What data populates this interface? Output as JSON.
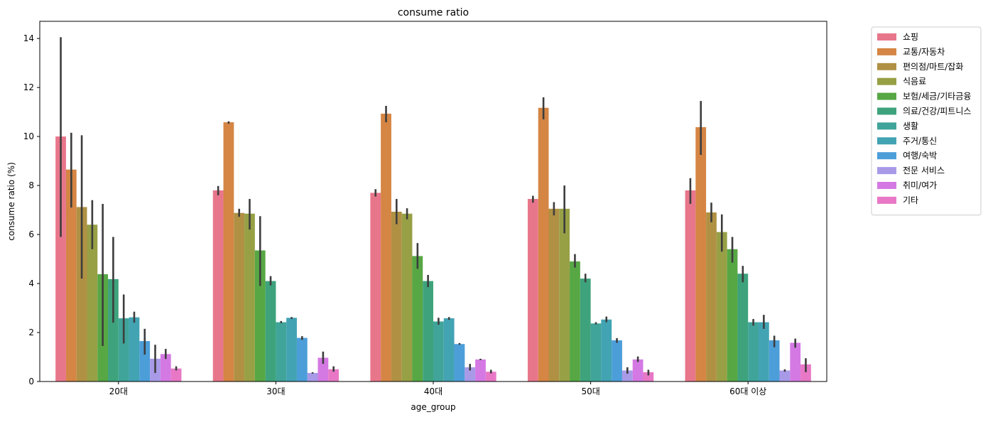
{
  "chart_data": {
    "type": "bar",
    "title": "consume ratio",
    "xlabel": "age_group",
    "ylabel": "consume ratio (%)",
    "ylim": [
      0,
      14.7
    ],
    "yticks": [
      0,
      2,
      4,
      6,
      8,
      10,
      12,
      14
    ],
    "categories": [
      "20대",
      "30대",
      "40대",
      "50대",
      "60대 이상"
    ],
    "legend_position": "outside-top-right",
    "grid": false,
    "series": [
      {
        "name": "쇼핑",
        "color": "#e8768b",
        "values": [
          10.0,
          7.8,
          7.7,
          7.45,
          7.8
        ],
        "err": [
          [
            5.9,
            14.05
          ],
          [
            7.6,
            7.98
          ],
          [
            7.55,
            7.85
          ],
          [
            7.3,
            7.58
          ],
          [
            7.25,
            8.3
          ]
        ]
      },
      {
        "name": "교통/자동차",
        "color": "#d58544",
        "values": [
          8.65,
          10.58,
          10.93,
          11.17,
          10.38
        ],
        "err": [
          [
            7.1,
            10.15
          ],
          [
            10.52,
            10.62
          ],
          [
            10.58,
            11.25
          ],
          [
            10.7,
            11.6
          ],
          [
            9.25,
            11.45
          ]
        ]
      },
      {
        "name": "편의점/마트/잡화",
        "color": "#b09144",
        "values": [
          7.12,
          6.88,
          6.93,
          7.05,
          6.9
        ],
        "err": [
          [
            4.2,
            10.05
          ],
          [
            6.72,
            7.05
          ],
          [
            6.42,
            7.45
          ],
          [
            6.78,
            7.32
          ],
          [
            6.5,
            7.3
          ]
        ]
      },
      {
        "name": "식음료",
        "color": "#97a045",
        "values": [
          6.4,
          6.85,
          6.85,
          7.05,
          6.1
        ],
        "err": [
          [
            5.4,
            7.4
          ],
          [
            6.2,
            7.45
          ],
          [
            6.62,
            7.07
          ],
          [
            6.05,
            8.0
          ],
          [
            5.3,
            6.82
          ]
        ]
      },
      {
        "name": "보험/세금/기타금융",
        "color": "#57a744",
        "values": [
          4.38,
          5.35,
          5.12,
          4.9,
          5.4
        ],
        "err": [
          [
            1.45,
            7.25
          ],
          [
            3.9,
            6.75
          ],
          [
            4.6,
            5.65
          ],
          [
            4.65,
            5.2
          ],
          [
            4.85,
            5.9
          ]
        ]
      },
      {
        "name": "의료/건강/피트니스",
        "color": "#3ea37c",
        "values": [
          4.18,
          4.1,
          4.1,
          4.2,
          4.4
        ],
        "err": [
          [
            2.4,
            5.9
          ],
          [
            3.92,
            4.3
          ],
          [
            3.85,
            4.35
          ],
          [
            4.05,
            4.4
          ],
          [
            4.05,
            4.72
          ]
        ]
      },
      {
        "name": "생활",
        "color": "#40a49a",
        "values": [
          2.58,
          2.42,
          2.45,
          2.37,
          2.42
        ],
        "err": [
          [
            1.55,
            3.55
          ],
          [
            2.38,
            2.47
          ],
          [
            2.32,
            2.6
          ],
          [
            2.33,
            2.42
          ],
          [
            2.28,
            2.55
          ]
        ]
      },
      {
        "name": "주거/통신",
        "color": "#42a3b3",
        "values": [
          2.62,
          2.6,
          2.58,
          2.53,
          2.42
        ],
        "err": [
          [
            2.4,
            2.85
          ],
          [
            2.55,
            2.63
          ],
          [
            2.52,
            2.63
          ],
          [
            2.42,
            2.65
          ],
          [
            2.15,
            2.72
          ]
        ]
      },
      {
        "name": "여행/숙박",
        "color": "#4c9ed9",
        "values": [
          1.65,
          1.78,
          1.53,
          1.68,
          1.68
        ],
        "err": [
          [
            1.1,
            2.15
          ],
          [
            1.7,
            1.85
          ],
          [
            1.5,
            1.57
          ],
          [
            1.58,
            1.77
          ],
          [
            1.4,
            1.87
          ]
        ]
      },
      {
        "name": "전문 서비스",
        "color": "#a99ae8",
        "values": [
          0.93,
          0.35,
          0.58,
          0.45,
          0.45
        ],
        "err": [
          [
            0.35,
            1.5
          ],
          [
            0.35,
            0.35
          ],
          [
            0.45,
            0.72
          ],
          [
            0.32,
            0.58
          ],
          [
            0.4,
            0.5
          ]
        ]
      },
      {
        "name": "취미/여가",
        "color": "#d479e3",
        "values": [
          1.12,
          0.97,
          0.9,
          0.9,
          1.58
        ],
        "err": [
          [
            0.92,
            1.33
          ],
          [
            0.72,
            1.22
          ],
          [
            0.9,
            0.9
          ],
          [
            0.8,
            1.02
          ],
          [
            1.38,
            1.75
          ]
        ]
      },
      {
        "name": "기타",
        "color": "#e878c6",
        "values": [
          0.53,
          0.5,
          0.4,
          0.38,
          0.7
        ],
        "err": [
          [
            0.45,
            0.62
          ],
          [
            0.4,
            0.62
          ],
          [
            0.33,
            0.48
          ],
          [
            0.25,
            0.48
          ],
          [
            0.38,
            0.95
          ]
        ]
      }
    ]
  }
}
